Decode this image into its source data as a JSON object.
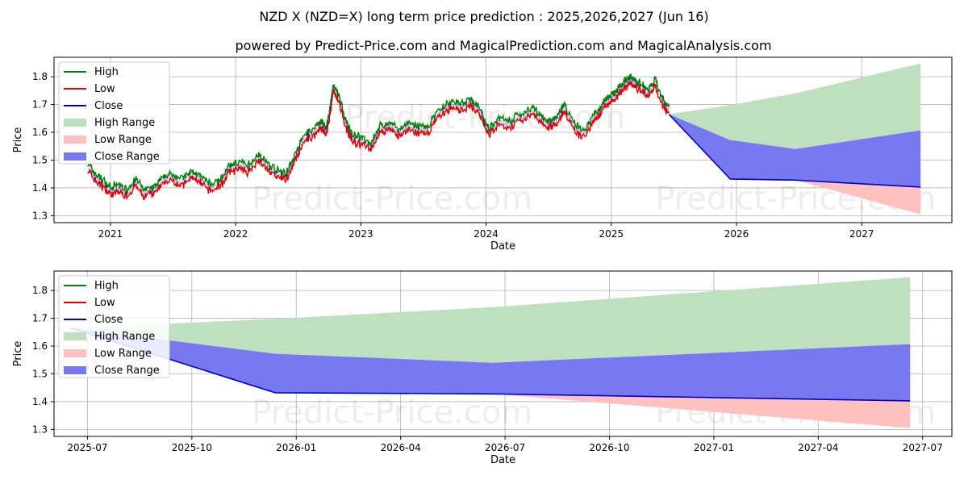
{
  "title": "NZD X (NZD=X) long term price prediction : 2025,2026,2027 (Jun 16)",
  "subtitle": "powered by Predict-Price.com and MagicalPrediction.com and MagicalAnalysis.com",
  "watermark": "Predict-Price.com",
  "colors": {
    "high": "#008000",
    "low": "#e60000",
    "close": "#0000cc",
    "high_range": "#bfe0bf",
    "low_range": "#ffc0c0",
    "close_range": "#7878f0"
  },
  "legend": [
    "High",
    "Low",
    "Close",
    "High Range",
    "Low Range",
    "Close Range"
  ],
  "chart_data": [
    {
      "type": "line",
      "panel": "top",
      "xlabel": "Date",
      "ylabel": "Price",
      "xlim": [
        2020.55,
        2027.72
      ],
      "ylim": [
        1.275,
        1.87
      ],
      "xticks": [
        2021,
        2022,
        2023,
        2024,
        2025,
        2026,
        2027
      ],
      "xtick_labels": [
        "2021",
        "2022",
        "2023",
        "2024",
        "2025",
        "2026",
        "2027"
      ],
      "yticks": [
        1.3,
        1.4,
        1.5,
        1.6,
        1.7,
        1.8
      ],
      "ytick_labels": [
        "1.3",
        "1.4",
        "1.5",
        "1.6",
        "1.7",
        "1.8"
      ],
      "grid": true,
      "legend_position": "top-left",
      "history": {
        "x": [
          2020.82,
          2020.87,
          2020.93,
          2021.0,
          2021.07,
          2021.13,
          2021.2,
          2021.27,
          2021.35,
          2021.43,
          2021.5,
          2021.58,
          2021.65,
          2021.72,
          2021.8,
          2021.88,
          2021.95,
          2022.03,
          2022.1,
          2022.18,
          2022.25,
          2022.33,
          2022.4,
          2022.48,
          2022.55,
          2022.62,
          2022.68,
          2022.72,
          2022.75,
          2022.78,
          2022.83,
          2022.88,
          2022.93,
          2023.0,
          2023.08,
          2023.15,
          2023.22,
          2023.3,
          2023.38,
          2023.45,
          2023.52,
          2023.6,
          2023.68,
          2023.75,
          2023.82,
          2023.88,
          2023.94,
          2023.98,
          2024.02,
          2024.1,
          2024.2,
          2024.3,
          2024.38,
          2024.45,
          2024.52,
          2024.58,
          2024.62,
          2024.7,
          2024.78,
          2024.85,
          2024.9,
          2024.95,
          2025.0,
          2025.05,
          2025.1,
          2025.15,
          2025.2,
          2025.25,
          2025.3,
          2025.35,
          2025.42,
          2025.46
        ],
        "close": [
          1.48,
          1.44,
          1.42,
          1.39,
          1.4,
          1.38,
          1.42,
          1.38,
          1.39,
          1.43,
          1.44,
          1.42,
          1.45,
          1.43,
          1.4,
          1.42,
          1.47,
          1.48,
          1.47,
          1.51,
          1.48,
          1.45,
          1.44,
          1.51,
          1.58,
          1.6,
          1.63,
          1.6,
          1.66,
          1.76,
          1.71,
          1.63,
          1.58,
          1.57,
          1.55,
          1.61,
          1.62,
          1.6,
          1.62,
          1.61,
          1.6,
          1.65,
          1.69,
          1.7,
          1.69,
          1.71,
          1.68,
          1.64,
          1.6,
          1.64,
          1.63,
          1.66,
          1.68,
          1.64,
          1.63,
          1.65,
          1.69,
          1.62,
          1.59,
          1.65,
          1.67,
          1.71,
          1.72,
          1.74,
          1.77,
          1.79,
          1.77,
          1.76,
          1.74,
          1.78,
          1.7,
          1.68
        ]
      },
      "forecast": {
        "x": [
          2025.46,
          2025.95,
          2026.47,
          2027.47
        ],
        "close": [
          1.665,
          1.432,
          1.428,
          1.403
        ],
        "high_range": [
          [
            1.665,
            1.665
          ],
          [
            1.57,
            1.698
          ],
          [
            1.54,
            1.74
          ],
          [
            1.607,
            1.848
          ]
        ],
        "low_range": [
          [
            1.665,
            1.665
          ],
          [
            1.432,
            1.432
          ],
          [
            1.428,
            1.428
          ],
          [
            1.305,
            1.403
          ]
        ],
        "close_range": [
          [
            1.665,
            1.665
          ],
          [
            1.432,
            1.572
          ],
          [
            1.428,
            1.54
          ],
          [
            1.403,
            1.607
          ]
        ]
      }
    },
    {
      "type": "area",
      "panel": "bottom",
      "xlabel": "Date",
      "ylabel": "Price",
      "xlim": [
        2025.42,
        2027.57
      ],
      "ylim": [
        1.275,
        1.87
      ],
      "xticks": [
        2025.5,
        2025.75,
        2026.0,
        2026.25,
        2026.5,
        2026.75,
        2027.0,
        2027.25,
        2027.5
      ],
      "xtick_labels": [
        "2025-07",
        "2025-10",
        "2026-01",
        "2026-04",
        "2026-07",
        "2026-10",
        "2027-01",
        "2027-04",
        "2027-07"
      ],
      "yticks": [
        1.3,
        1.4,
        1.5,
        1.6,
        1.7,
        1.8
      ],
      "ytick_labels": [
        "1.3",
        "1.4",
        "1.5",
        "1.6",
        "1.7",
        "1.8"
      ],
      "grid": true,
      "legend_position": "top-left",
      "forecast": {
        "x": [
          2025.46,
          2025.95,
          2026.47,
          2027.47
        ],
        "close": [
          1.665,
          1.432,
          1.428,
          1.403
        ],
        "high_range": [
          [
            1.665,
            1.665
          ],
          [
            1.57,
            1.698
          ],
          [
            1.54,
            1.74
          ],
          [
            1.607,
            1.848
          ]
        ],
        "low_range": [
          [
            1.665,
            1.665
          ],
          [
            1.432,
            1.432
          ],
          [
            1.428,
            1.428
          ],
          [
            1.305,
            1.403
          ]
        ],
        "close_range": [
          [
            1.665,
            1.665
          ],
          [
            1.432,
            1.572
          ],
          [
            1.428,
            1.54
          ],
          [
            1.403,
            1.607
          ]
        ]
      }
    }
  ]
}
